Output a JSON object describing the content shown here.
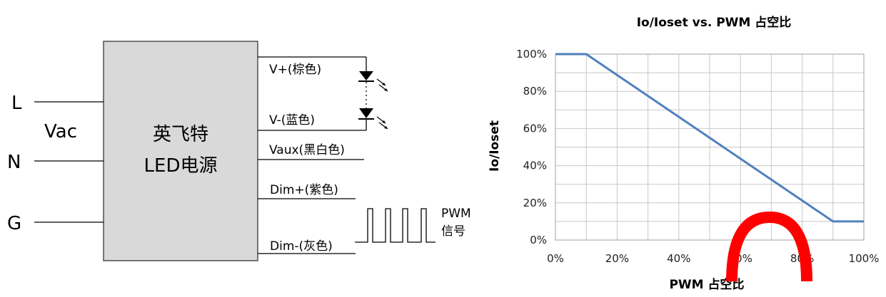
{
  "wiring": {
    "inputs": [
      "L",
      "N",
      "G"
    ],
    "vac_label": "Vac",
    "box_line1": "英飞特",
    "box_line2": "LED电源",
    "v_plus": "V+(棕色)",
    "v_minus": "V-(蓝色)",
    "vaux": "Vaux(黑白色)",
    "dim_plus": "Dim+(紫色)",
    "dim_minus": "Dim-(灰色)",
    "pwm_line1": "PWM",
    "pwm_line2": "信号",
    "box_color": "#d9d9d9"
  },
  "chart_data": {
    "type": "line",
    "title": "Io/Ioset vs. PWM 占空比",
    "xlabel": "PWM 占空比",
    "ylabel": "Io/Ioset",
    "x_ticks": [
      "0%",
      "20%",
      "40%",
      "60%",
      "80%",
      "100%"
    ],
    "y_ticks": [
      "0%",
      "20%",
      "40%",
      "60%",
      "80%",
      "100%"
    ],
    "xlim": [
      0,
      100
    ],
    "ylim": [
      0,
      100
    ],
    "grid": true,
    "series": [
      {
        "x": [
          0,
          10,
          90,
          100
        ],
        "y": [
          100,
          100,
          10,
          10
        ],
        "color": "#4f81bd"
      }
    ]
  }
}
